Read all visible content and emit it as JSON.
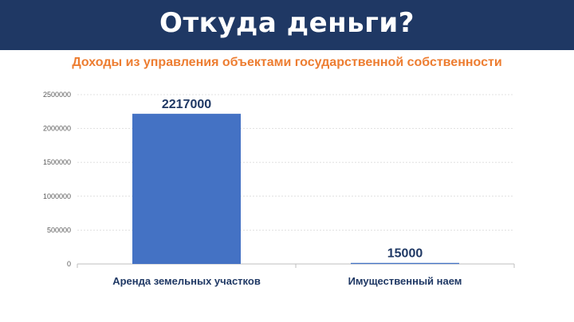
{
  "slide": {
    "title": "Откуда деньги?",
    "subtitle": "Доходы из управления объектами государственной собственности"
  },
  "colors": {
    "header_bg": "#1f3864",
    "subtitle": "#ed7d31",
    "bar": "#4472c4",
    "label_text": "#1f3864"
  },
  "chart_data": {
    "type": "bar",
    "categories": [
      "Аренда земельных участков",
      "Имущественный наем"
    ],
    "values": [
      2217000,
      15000
    ],
    "data_labels": [
      "2217000",
      "15000"
    ],
    "title": "",
    "xlabel": "",
    "ylabel": "",
    "ylim": [
      0,
      2500000
    ],
    "yticks": [
      "0",
      "500000",
      "1000000",
      "1500000",
      "2000000",
      "2500000"
    ],
    "grid": true,
    "legend": "none"
  }
}
